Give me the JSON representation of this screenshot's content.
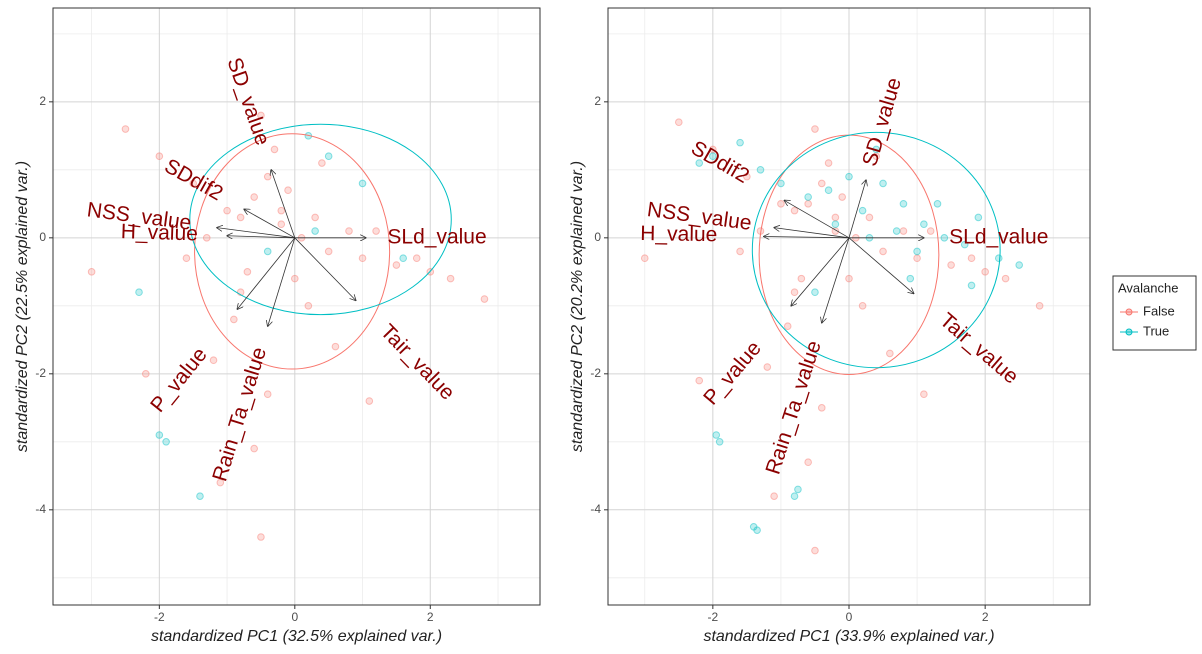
{
  "chart_data": [
    {
      "type": "scatter",
      "x_label": "standardized PC1 (32.5% explained var.)",
      "y_label": "standardized PC2 (22.5% explained var.)",
      "xlim": [
        -3.57,
        3.62
      ],
      "ylim": [
        -5.4,
        3.38
      ],
      "xticks": [
        -2,
        0,
        2
      ],
      "yticks": [
        -4,
        -2,
        0,
        2
      ],
      "grid": true,
      "minor_grid": true,
      "series": [
        {
          "name": "False",
          "color": "#F8766D",
          "x": [
            -0.6,
            -0.4,
            -0.8,
            -0.2,
            0.1,
            0.5,
            1.0,
            1.5,
            2.0,
            -1.0,
            -1.5,
            -2.0,
            -2.5,
            -3.0,
            -0.5,
            -0.3,
            -0.1,
            0.3,
            0.8,
            1.2,
            1.8,
            2.3,
            2.8,
            -0.7,
            -0.9,
            -1.2,
            -0.4,
            -0.6,
            -1.1,
            -0.5,
            0.2,
            0.6,
            1.1,
            -1.6,
            -2.2,
            -0.2,
            0.0,
            -0.8,
            0.4,
            -1.3
          ],
          "values": [
            0.6,
            0.9,
            0.3,
            0.2,
            0.0,
            -0.2,
            -0.3,
            -0.4,
            -0.5,
            0.4,
            0.8,
            1.2,
            1.6,
            -0.5,
            1.8,
            1.3,
            0.7,
            0.3,
            0.1,
            0.1,
            -0.3,
            -0.6,
            -0.9,
            -0.5,
            -1.2,
            -1.8,
            -2.3,
            -3.1,
            -3.6,
            -4.4,
            -1.0,
            -1.6,
            -2.4,
            -0.3,
            -2.0,
            0.4,
            -0.6,
            -0.8,
            1.1,
            0.0
          ],
          "ellipse": {
            "cx": -0.04,
            "cy": -0.2,
            "rx": 1.44,
            "ry": 1.73
          }
        },
        {
          "name": "True",
          "color": "#00BFC4",
          "x": [
            0.5,
            1.0,
            0.2,
            -0.4,
            -2.3,
            -1.4,
            -2.0,
            -1.9,
            0.3,
            1.6
          ],
          "values": [
            1.2,
            0.8,
            1.5,
            -0.2,
            -0.8,
            -3.8,
            -2.9,
            -3.0,
            0.1,
            -0.3
          ],
          "ellipse": {
            "cx": 0.38,
            "cy": 0.27,
            "rx": 1.93,
            "ry": 1.4
          }
        }
      ],
      "loadings": [
        {
          "name": "SD_value",
          "x": -0.35,
          "y": 1.0
        },
        {
          "name": "SDdif2",
          "x": -0.75,
          "y": 0.42
        },
        {
          "name": "NSS_value",
          "x": -1.15,
          "y": 0.15
        },
        {
          "name": "H_value",
          "x": -1.0,
          "y": 0.03
        },
        {
          "name": "SLd_value",
          "x": 1.05,
          "y": 0
        },
        {
          "name": "Tair_value",
          "x": 0.9,
          "y": -0.92
        },
        {
          "name": "P_value",
          "x": -0.85,
          "y": -1.05
        },
        {
          "name": "Rain_Ta_value",
          "x": -0.4,
          "y": -1.3
        }
      ]
    },
    {
      "type": "scatter",
      "x_label": "standardized PC1 (33.9% explained var.)",
      "y_label": "standardized PC2 (20.2% explained var.)",
      "xlim": [
        -3.54,
        3.54
      ],
      "ylim": [
        -5.4,
        3.38
      ],
      "xticks": [
        -2,
        0,
        2
      ],
      "yticks": [
        -4,
        -2,
        0,
        2
      ],
      "grid": true,
      "minor_grid": true,
      "legend": {
        "title": "Avalanche",
        "position": "right"
      },
      "series": [
        {
          "name": "False",
          "color": "#F8766D",
          "x": [
            -0.6,
            -0.4,
            -0.8,
            -0.2,
            0.1,
            0.5,
            1.0,
            1.5,
            2.0,
            -1.0,
            -1.5,
            -2.0,
            -2.5,
            -3.0,
            -0.5,
            -0.3,
            -0.1,
            0.3,
            0.8,
            1.2,
            1.8,
            2.3,
            2.8,
            -0.7,
            -0.9,
            -1.2,
            -0.4,
            -0.6,
            -1.1,
            -0.5,
            0.2,
            0.6,
            1.1,
            -1.6,
            -2.2,
            -0.2,
            0.0,
            -0.8,
            0.4,
            -1.3
          ],
          "values": [
            0.5,
            0.8,
            0.4,
            0.1,
            0.0,
            -0.2,
            -0.3,
            -0.4,
            -0.5,
            0.5,
            0.9,
            1.3,
            1.7,
            -0.3,
            1.6,
            1.1,
            0.6,
            0.3,
            0.1,
            0.1,
            -0.3,
            -0.6,
            -1.0,
            -0.6,
            -1.3,
            -1.9,
            -2.5,
            -3.3,
            -3.8,
            -4.6,
            -1.0,
            -1.7,
            -2.3,
            -0.2,
            -2.1,
            0.3,
            -0.6,
            -0.8,
            1.2,
            0.1
          ],
          "ellipse": {
            "cx": 0.0,
            "cy": -0.25,
            "rx": 1.32,
            "ry": 1.76
          }
        },
        {
          "name": "True",
          "color": "#00BFC4",
          "x": [
            -2.2,
            -2.0,
            -1.6,
            -1.3,
            -1.0,
            -0.6,
            -0.3,
            0.0,
            0.2,
            0.5,
            0.8,
            1.1,
            1.4,
            1.7,
            1.9,
            2.2,
            2.5,
            -0.2,
            0.3,
            0.7,
            1.0,
            1.3,
            -0.5,
            -1.95,
            -1.9,
            -0.75,
            -0.8,
            -1.35,
            -1.4,
            0.9,
            0.4,
            1.8
          ],
          "values": [
            1.1,
            1.2,
            1.4,
            1.0,
            0.8,
            0.6,
            0.7,
            0.9,
            0.4,
            0.8,
            0.5,
            0.2,
            0.0,
            -0.1,
            0.3,
            -0.3,
            -0.4,
            0.2,
            0.0,
            0.1,
            -0.2,
            0.5,
            -0.8,
            -2.9,
            -3.0,
            -3.7,
            -3.8,
            -4.3,
            -4.25,
            -0.6,
            1.3,
            -0.7
          ],
          "ellipse": {
            "cx": 0.4,
            "cy": -0.18,
            "rx": 1.82,
            "ry": 1.73
          }
        }
      ],
      "loadings": [
        {
          "name": "SD_value",
          "x": 0.25,
          "y": 0.85
        },
        {
          "name": "SDdif2",
          "x": -0.95,
          "y": 0.55
        },
        {
          "name": "NSS_value",
          "x": -1.1,
          "y": 0.15
        },
        {
          "name": "H_value",
          "x": -1.25,
          "y": 0.02
        },
        {
          "name": "SLd_value",
          "x": 1.1,
          "y": 0
        },
        {
          "name": "Tair_value",
          "x": 0.95,
          "y": -0.82
        },
        {
          "name": "P_value",
          "x": -0.85,
          "y": -1.0
        },
        {
          "name": "Rain_Ta_value",
          "x": -0.4,
          "y": -1.25
        }
      ]
    }
  ]
}
